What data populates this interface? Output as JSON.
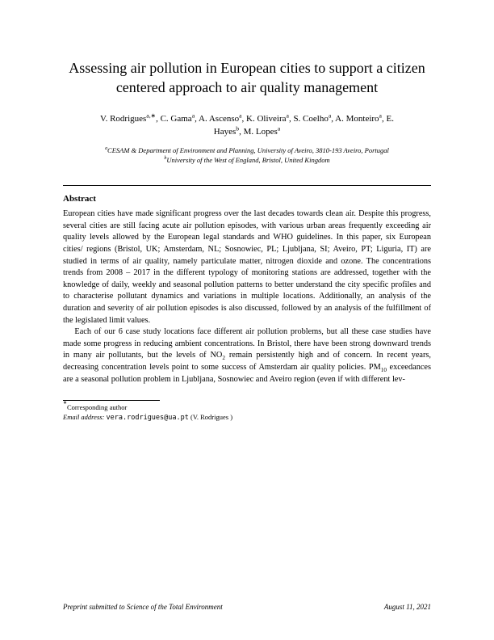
{
  "title": "Assessing air pollution in European cities to support a citizen centered approach to air quality management",
  "authors_html": "V. Rodrigues<span class='sup'>a,∗</span>, C. Gama<span class='sup'>a</span>, A. Ascenso<span class='sup'>a</span>, K. Oliveira<span class='sup'>a</span>, S. Coelho<span class='sup'>a</span>, A. Monteiro<span class='sup'>a</span>, E. Hayes<span class='sup'>b</span>, M. Lopes<span class='sup'>a</span>",
  "affiliation_a_html": "<span class='sup'>a</span>CESAM & Department of Environment and Planning, University of Aveiro, 3810-193 Aveiro, Portugal",
  "affiliation_b_html": "<span class='sup'>b</span>University of the West of England, Bristol, United Kingdom",
  "abstract_heading": "Abstract",
  "abstract_p1": "European cities have made significant progress over the last decades towards clean air. Despite this progress, several cities are still facing acute air pollution episodes, with various urban areas frequently exceeding air quality levels allowed by the European legal standards and WHO guidelines. In this paper, six European cities/ regions (Bristol, UK; Amsterdam, NL; Sosnowiec, PL; Ljubljana, SI; Aveiro, PT; Liguria, IT) are studied in terms of air quality, namely particulate matter, nitrogen dioxide and ozone. The concentrations trends from 2008 – 2017 in the different typology of monitoring stations are addressed, together with the knowledge of daily, weekly and seasonal pollution patterns to better understand the city specific profiles and to characterise pollutant dynamics and variations in multiple locations. Additionally, an analysis of the duration and severity of air pollution episodes is also discussed, followed by an analysis of the fulfillment of the legislated limit values.",
  "abstract_p2_html": "Each of our 6 case study locations face different air pollution problems, but all these case studies have made some progress in reducing ambient concentrations. In Bristol, there have been strong downward trends in many air pollutants, but the levels of NO<span class='sub'>2</span> remain persistently high and of concern. In recent years, decreasing concentration levels point to some success of Amsterdam air quality policies. PM<span class='sub'>10</span> exceedances are a seasonal pollution problem in Ljubljana, Sosnowiec and Aveiro region (even if with different lev-",
  "footnote_corresponding": "Corresponding author",
  "footnote_email_label": "Email address:",
  "footnote_email": "vera.rodrigues@ua.pt",
  "footnote_email_person": "(V. Rodrigues )",
  "footer_left": "Preprint submitted to Science of the Total Environment",
  "footer_right": "August 11, 2021"
}
